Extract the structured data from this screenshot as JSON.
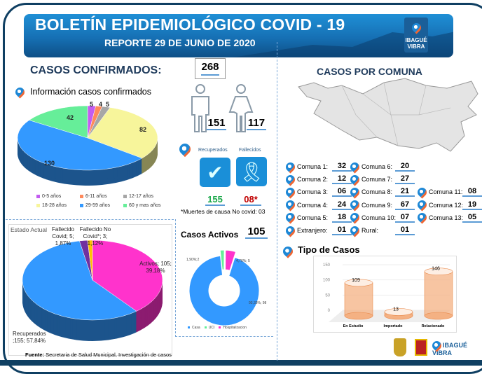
{
  "header": {
    "title": "BOLETÍN EPIDEMIOLÓGICO COVID - 19",
    "subtitle": "REPORTE 29 DE JUNIO DE 2020",
    "logo_text": "IBAGUÉ VIBRA"
  },
  "confirmados": {
    "heading": "CASOS CONFIRMADOS:",
    "total": "268",
    "hombres": "151",
    "mujeres": "117",
    "subheading": "Información casos confirmados"
  },
  "resultados": {
    "recuperados_label": "Recuperados",
    "fallecidos_label": "Fallecidos",
    "recuperados": "155",
    "fallecidos": "08*",
    "nota": "*Muertes de causa No covid: 03"
  },
  "comuna": {
    "heading": "CASOS POR COMUNA",
    "items": [
      {
        "label": "Comuna 1:",
        "value": "32"
      },
      {
        "label": "Comuna 2:",
        "value": "12"
      },
      {
        "label": "Comuna 3:",
        "value": "06"
      },
      {
        "label": "Comuna 4:",
        "value": "24"
      },
      {
        "label": "Comuna 5:",
        "value": "18"
      },
      {
        "label": "Comuna 6:",
        "value": "20"
      },
      {
        "label": "Comuna 7:",
        "value": "27"
      },
      {
        "label": "Comuna 8:",
        "value": "21"
      },
      {
        "label": "Comuna 9:",
        "value": "67"
      },
      {
        "label": "Comuna 10:",
        "value": "07"
      },
      {
        "label": "Comuna 11:",
        "value": "08"
      },
      {
        "label": "Comuna 12:",
        "value": "19"
      },
      {
        "label": "Comuna 13:",
        "value": "05"
      },
      {
        "label": "Extranjero:",
        "value": "01"
      },
      {
        "label": "Rural:",
        "value": "01"
      }
    ]
  },
  "casos_activos": {
    "heading": "Casos Activos",
    "total": "105"
  },
  "tipo": {
    "heading": "Tipo de Casos"
  },
  "fuente": {
    "bold": "Fuente:",
    "text": " Secretaria de Salud Municipal, Investigación de casos"
  },
  "chart_data": [
    {
      "type": "pie",
      "title": "",
      "categories": [
        "0-5 años",
        "6-11 años",
        "12-17 años",
        "18-28 años",
        "29-59 años",
        "60 y mas años"
      ],
      "values": [
        5,
        4,
        5,
        82,
        130,
        42
      ],
      "colors": [
        "#c35cf0",
        "#ff8a5c",
        "#a6a6a6",
        "#f7f59b",
        "#3399ff",
        "#66ee99"
      ],
      "legend": "bottom"
    },
    {
      "type": "pie",
      "title": "Estado Actual",
      "categories": [
        "Activos",
        "Recuperados",
        "Fallecido Covid",
        "Fallecido No Covid*"
      ],
      "values": [
        105,
        155,
        5,
        3
      ],
      "labels": [
        "Activos; 105; 39,18%",
        "Recuperados ;155; 57,84%",
        "Fallecido Covid; 5; 1,87%",
        "Fallecido No Covid*; 3; 1,12%"
      ],
      "colors": [
        "#ff33cc",
        "#3399ff",
        "#7030a0",
        "#ffc000"
      ]
    },
    {
      "type": "pie",
      "title": "",
      "categories": [
        "Casa",
        "UCI",
        "Hospitalizacion"
      ],
      "values": [
        98,
        2,
        5
      ],
      "labels": [
        "93,33%; 98",
        "1,90%;2",
        "4,76%; 5"
      ],
      "colors": [
        "#3399ff",
        "#66ee99",
        "#ff33cc"
      ],
      "legend": "bottom",
      "donut": true
    },
    {
      "type": "bar",
      "title": "",
      "categories": [
        "En Estudio",
        "Importado",
        "Relacionado"
      ],
      "values": [
        109,
        13,
        146
      ],
      "ylim": [
        0,
        150
      ],
      "yticks": [
        0,
        50,
        100,
        150
      ],
      "color": "#f4b183"
    }
  ]
}
